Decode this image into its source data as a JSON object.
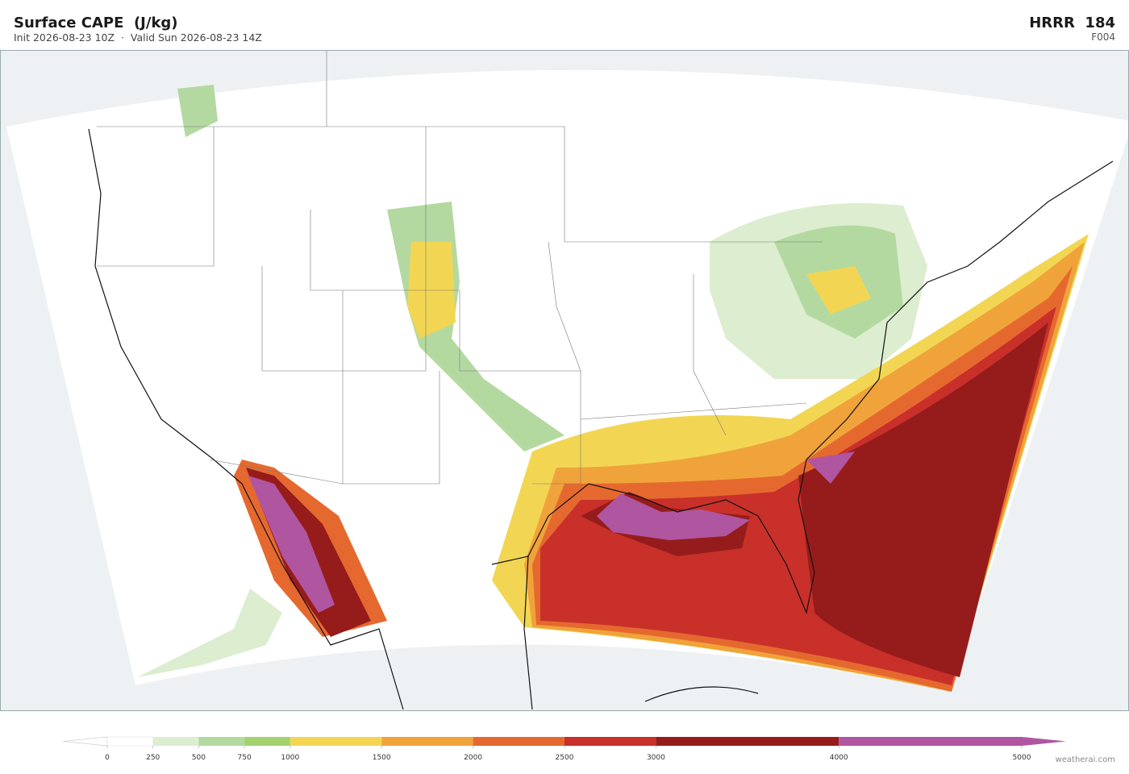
{
  "header": {
    "title": "Surface CAPE  (J/kg)",
    "subtitle": "Init 2026-08-23 10Z  ·  Valid Sun 2026-08-23 14Z",
    "model": "HRRR  184",
    "forecast_hour": "F004"
  },
  "colorbar": {
    "levels": [
      0,
      250,
      500,
      750,
      1000,
      1500,
      2000,
      2500,
      3000,
      4000,
      5000
    ],
    "colors": [
      "#ffffff",
      "#dcedd0",
      "#b3d9a0",
      "#a3d16e",
      "#f2d653",
      "#f0a33a",
      "#e5692f",
      "#c9302a",
      "#961c1c",
      "#b055a0"
    ]
  },
  "footer": {
    "credit": "weatherai.com"
  }
}
